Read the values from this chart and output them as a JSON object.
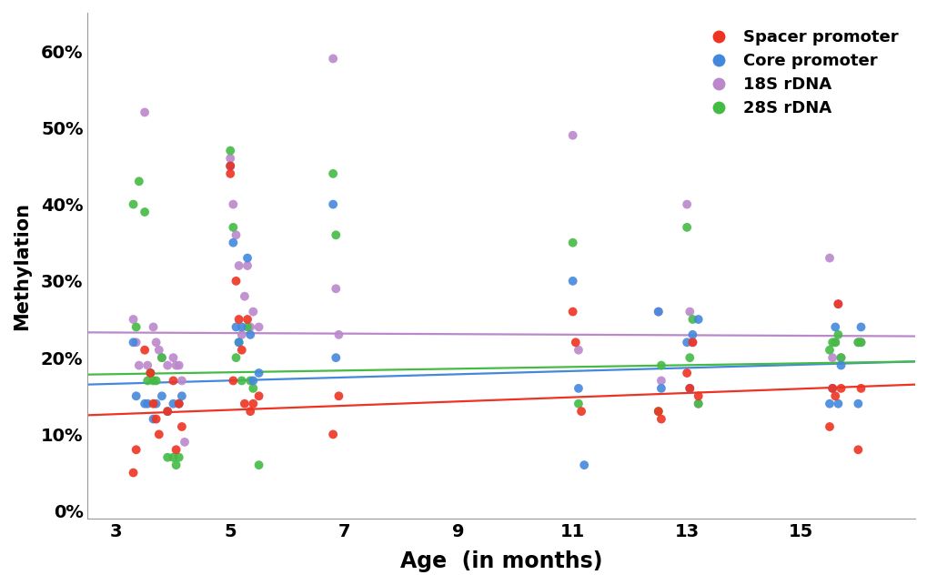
{
  "title": "",
  "xlabel": "Age  (in months)",
  "ylabel": "Methylation",
  "xlim": [
    2.5,
    17
  ],
  "ylim": [
    -0.01,
    0.65
  ],
  "xticks": [
    3,
    5,
    7,
    9,
    11,
    13,
    15
  ],
  "yticks": [
    0.0,
    0.1,
    0.2,
    0.3,
    0.4,
    0.5,
    0.6
  ],
  "ytick_labels": [
    "0%",
    "10%",
    "20%",
    "30%",
    "40%",
    "50%",
    "60%"
  ],
  "colors": {
    "spacer": "#EE3322",
    "core": "#4488DD",
    "s18": "#BB88CC",
    "s28": "#44BB44"
  },
  "legend_labels": [
    "Spacer promoter",
    "Core promoter",
    "18S rDNA",
    "28S rDNA"
  ],
  "spacer_x": [
    3.3,
    3.35,
    3.5,
    3.6,
    3.65,
    3.7,
    3.75,
    3.9,
    4.0,
    4.05,
    4.1,
    4.15,
    5.0,
    5.0,
    5.05,
    5.1,
    5.15,
    5.2,
    5.25,
    5.3,
    5.35,
    5.4,
    5.5,
    6.8,
    6.9,
    11.0,
    11.05,
    11.15,
    12.5,
    12.55,
    13.0,
    13.05,
    13.1,
    13.2,
    15.5,
    15.55,
    15.6,
    15.65,
    15.7,
    16.0,
    16.05
  ],
  "spacer_y": [
    0.05,
    0.08,
    0.21,
    0.18,
    0.14,
    0.12,
    0.1,
    0.13,
    0.17,
    0.08,
    0.14,
    0.11,
    0.45,
    0.44,
    0.17,
    0.3,
    0.25,
    0.21,
    0.14,
    0.25,
    0.13,
    0.14,
    0.15,
    0.1,
    0.15,
    0.26,
    0.22,
    0.13,
    0.13,
    0.12,
    0.18,
    0.16,
    0.22,
    0.15,
    0.11,
    0.16,
    0.15,
    0.27,
    0.16,
    0.08,
    0.16
  ],
  "core_x": [
    3.3,
    3.35,
    3.5,
    3.55,
    3.65,
    3.7,
    3.8,
    3.9,
    4.0,
    4.1,
    4.15,
    5.0,
    5.05,
    5.1,
    5.15,
    5.2,
    5.3,
    5.35,
    5.4,
    5.5,
    6.8,
    6.85,
    11.0,
    11.1,
    11.2,
    12.5,
    12.55,
    13.0,
    13.05,
    13.1,
    13.2,
    15.5,
    15.55,
    15.6,
    15.65,
    15.7,
    16.0,
    16.05
  ],
  "core_y": [
    0.22,
    0.15,
    0.14,
    0.14,
    0.12,
    0.14,
    0.15,
    0.13,
    0.14,
    0.14,
    0.15,
    0.45,
    0.35,
    0.24,
    0.22,
    0.24,
    0.33,
    0.23,
    0.17,
    0.18,
    0.4,
    0.2,
    0.3,
    0.16,
    0.06,
    0.26,
    0.16,
    0.22,
    0.16,
    0.23,
    0.25,
    0.14,
    0.16,
    0.24,
    0.14,
    0.19,
    0.14,
    0.24
  ],
  "s18_x": [
    3.3,
    3.35,
    3.4,
    3.5,
    3.55,
    3.6,
    3.65,
    3.7,
    3.75,
    3.8,
    3.9,
    4.0,
    4.05,
    4.1,
    4.15,
    4.2,
    5.0,
    5.05,
    5.1,
    5.15,
    5.2,
    5.25,
    5.3,
    5.35,
    5.4,
    5.5,
    6.8,
    6.85,
    6.9,
    11.0,
    11.1,
    12.5,
    12.55,
    13.0,
    13.05,
    13.1,
    13.2,
    15.5,
    15.55,
    15.6,
    15.65,
    15.7,
    16.0,
    16.05
  ],
  "s18_y": [
    0.25,
    0.22,
    0.19,
    0.52,
    0.19,
    0.18,
    0.24,
    0.22,
    0.21,
    0.2,
    0.19,
    0.2,
    0.19,
    0.19,
    0.17,
    0.09,
    0.46,
    0.4,
    0.36,
    0.32,
    0.23,
    0.28,
    0.32,
    0.24,
    0.26,
    0.24,
    0.59,
    0.29,
    0.23,
    0.49,
    0.21,
    0.26,
    0.17,
    0.4,
    0.26,
    0.22,
    0.14,
    0.33,
    0.2,
    0.22,
    0.27,
    0.2,
    0.22,
    0.22
  ],
  "s28_x": [
    3.3,
    3.35,
    3.4,
    3.5,
    3.55,
    3.6,
    3.65,
    3.7,
    3.8,
    3.9,
    4.0,
    4.05,
    4.1,
    5.0,
    5.05,
    5.1,
    5.15,
    5.2,
    5.3,
    5.35,
    5.4,
    5.5,
    6.8,
    6.85,
    11.0,
    11.1,
    12.5,
    12.55,
    13.0,
    13.05,
    13.1,
    13.2,
    15.5,
    15.55,
    15.6,
    15.65,
    15.7,
    16.0,
    16.05
  ],
  "s28_y": [
    0.4,
    0.24,
    0.43,
    0.39,
    0.17,
    0.18,
    0.17,
    0.17,
    0.2,
    0.07,
    0.07,
    0.06,
    0.07,
    0.47,
    0.37,
    0.2,
    0.22,
    0.17,
    0.24,
    0.17,
    0.16,
    0.06,
    0.44,
    0.36,
    0.35,
    0.14,
    0.13,
    0.19,
    0.37,
    0.2,
    0.25,
    0.14,
    0.21,
    0.22,
    0.22,
    0.23,
    0.2,
    0.22,
    0.22
  ],
  "trend_lines": {
    "spacer": [
      0.125,
      0.165
    ],
    "core": [
      0.165,
      0.195
    ],
    "s18": [
      0.233,
      0.228
    ],
    "s28": [
      0.178,
      0.195
    ]
  },
  "dot_size": 50,
  "alpha": 0.9,
  "trend_linewidth": 1.6
}
